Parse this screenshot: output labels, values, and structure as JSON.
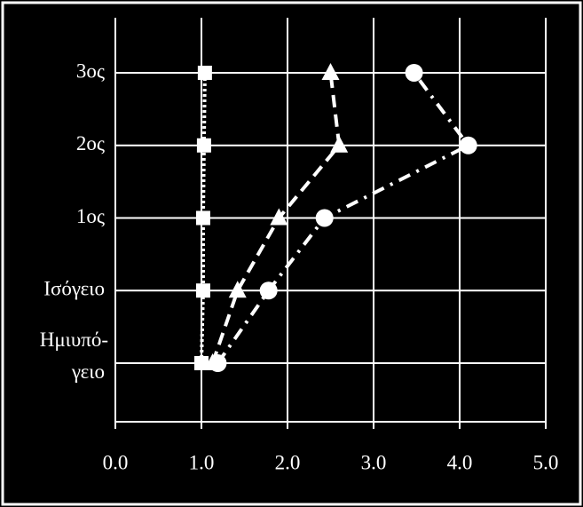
{
  "chart_data": {
    "type": "line",
    "orientation": "horizontal",
    "categories": [
      "Ημιυπό-\nγειο",
      "Ισόγειο",
      "1ος",
      "2ος",
      "3ος"
    ],
    "series": [
      {
        "color": "#ffffff",
        "marker": "square",
        "dash": "3,3",
        "values": [
          1.0,
          1.02,
          1.02,
          1.03,
          1.04
        ]
      },
      {
        "color": "#ffffff",
        "marker": "triangle",
        "dash": "14,8",
        "values": [
          1.13,
          1.42,
          1.9,
          2.6,
          2.5
        ]
      },
      {
        "color": "#ffffff",
        "marker": "circle",
        "dash": "14,8,3,8",
        "values": [
          1.19,
          1.78,
          2.43,
          4.1,
          3.47
        ]
      }
    ],
    "xlim": [
      0,
      5
    ],
    "xticks": [
      {
        "value": 0,
        "label": "0.0"
      },
      {
        "value": 1,
        "label": "1.0"
      },
      {
        "value": 2,
        "label": "2.0"
      },
      {
        "value": 3,
        "label": "3.0"
      },
      {
        "value": 4,
        "label": "4.0"
      },
      {
        "value": 5,
        "label": "5.0"
      }
    ],
    "grid": true
  }
}
